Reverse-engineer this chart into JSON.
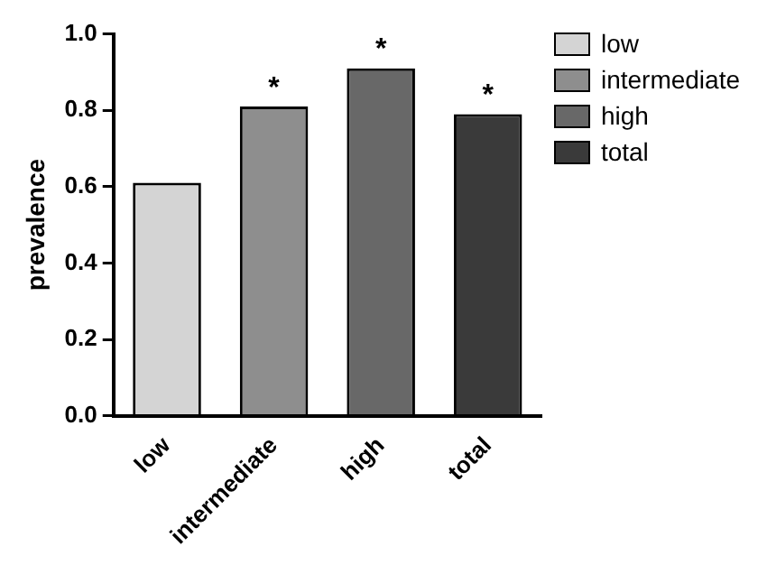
{
  "chart_data": {
    "type": "bar",
    "ylabel": "prevalence",
    "categories": [
      "low",
      "intermediate",
      "high",
      "total"
    ],
    "series": [
      {
        "name": "low",
        "color": "#d4d4d4",
        "values": [
          0.61,
          null,
          null,
          null
        ]
      },
      {
        "name": "intermediate",
        "color": "#8e8e8e",
        "values": [
          null,
          0.81,
          null,
          null
        ]
      },
      {
        "name": "high",
        "color": "#686868",
        "values": [
          null,
          null,
          0.91,
          null
        ]
      },
      {
        "name": "total",
        "color": "#3a3a3a",
        "values": [
          null,
          null,
          null,
          0.79
        ]
      }
    ],
    "ylim": [
      0,
      1
    ],
    "yticks": [
      {
        "value": 0,
        "label": "0.0"
      },
      {
        "value": 0.2,
        "label": "0.2"
      },
      {
        "value": 0.4,
        "label": "0.4"
      },
      {
        "value": 0.6,
        "label": "0.6"
      },
      {
        "value": 0.8,
        "label": "0.8"
      },
      {
        "value": 1,
        "label": "1.0"
      }
    ],
    "grid": false,
    "legend": "top right",
    "annotations": [
      {
        "text": "*",
        "x": "intermediate",
        "y": 0.81
      },
      {
        "text": "*",
        "x": "high",
        "y": 0.91
      },
      {
        "text": "*",
        "x": "total",
        "y": 0.79
      }
    ]
  }
}
